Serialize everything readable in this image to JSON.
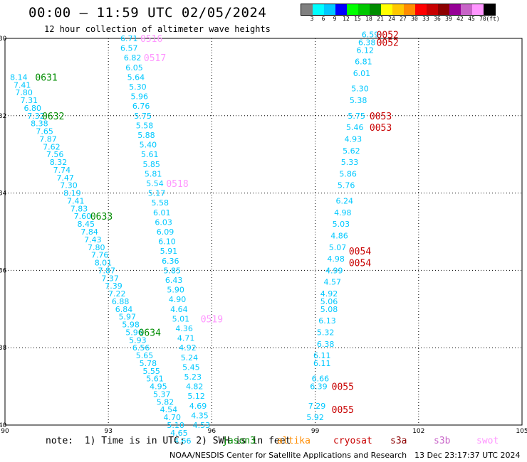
{
  "header": {
    "title": "00:00 — 11:59 UTC 02/05/2024",
    "subtitle": "12 hour collection of altimeter wave heights"
  },
  "colorbar": {
    "colors": [
      "#808080",
      "#00ffff",
      "#00c8ff",
      "#0000ff",
      "#00ff00",
      "#00c800",
      "#008c00",
      "#ffff00",
      "#ffc800",
      "#ff8c00",
      "#ff0000",
      "#c80000",
      "#8c0000",
      "#960096",
      "#c864c8",
      "#ff96ff",
      "#000000"
    ],
    "labels": [
      "3",
      "6",
      "9",
      "12",
      "15",
      "18",
      "21",
      "24",
      "27",
      "30",
      "33",
      "36",
      "39",
      "42",
      "45",
      "70",
      "(ft)"
    ]
  },
  "footer": {
    "note": "note:  1) Time is in UTC;  2) SWH is in feet",
    "legend": [
      {
        "label": "jason3",
        "color": "#008c00"
      },
      {
        "label": "altika",
        "color": "#ff8c00"
      },
      {
        "label": "cryosat",
        "color": "#c80000"
      },
      {
        "label": "s3a",
        "color": "#8c0000"
      },
      {
        "label": "s3b",
        "color": "#c864c8"
      },
      {
        "label": "swot",
        "color": "#ff96ff"
      }
    ],
    "credit": "NOAA/NESDIS Center for Satellite Applications and Research",
    "timestamp": "13 Dec 23:17:37 UTC 2024"
  },
  "chart_data": {
    "type": "scatter",
    "xlim": [
      90,
      105
    ],
    "ylim": [
      -40,
      -30
    ],
    "x_ticks": [
      "90",
      "93",
      "96",
      "99",
      "102",
      "105"
    ],
    "y_ticks": [
      "-30",
      "-32",
      "-34",
      "-36",
      "-38",
      "-40"
    ],
    "grid": true,
    "value_color": "#00c8ff",
    "series": [
      {
        "track": 1,
        "points": [
          [
            90.4,
            -31.0,
            "8.14"
          ],
          [
            90.5,
            -31.2,
            "7.41"
          ],
          [
            90.55,
            -31.4,
            "7.80"
          ],
          [
            90.7,
            -31.6,
            "7.31"
          ],
          [
            90.8,
            -31.8,
            "6.80"
          ],
          [
            90.9,
            -32.0,
            "7.32"
          ],
          [
            91.0,
            -32.2,
            "8.38"
          ],
          [
            91.15,
            -32.4,
            "7.65"
          ],
          [
            91.25,
            -32.6,
            "7.87"
          ],
          [
            91.35,
            -32.8,
            "7.62"
          ],
          [
            91.45,
            -33.0,
            "7.56"
          ],
          [
            91.55,
            -33.2,
            "8.32"
          ],
          [
            91.65,
            -33.4,
            "7.74"
          ],
          [
            91.75,
            -33.6,
            "7.47"
          ],
          [
            91.85,
            -33.8,
            "7.30"
          ],
          [
            91.95,
            -34.0,
            "8.19"
          ],
          [
            92.05,
            -34.2,
            "7.41"
          ],
          [
            92.15,
            -34.4,
            "7.83"
          ],
          [
            92.25,
            -34.6,
            "7.60"
          ],
          [
            92.35,
            -34.8,
            "8.45"
          ],
          [
            92.45,
            -35.0,
            "7.84"
          ],
          [
            92.55,
            -35.2,
            "7.43"
          ],
          [
            92.65,
            -35.4,
            "7.80"
          ],
          [
            92.75,
            -35.6,
            "7.76"
          ],
          [
            92.85,
            -35.8,
            "8.01"
          ],
          [
            92.95,
            -36.0,
            "7.87"
          ],
          [
            93.05,
            -36.2,
            "7.37"
          ],
          [
            93.15,
            -36.4,
            "7.39"
          ],
          [
            93.25,
            -36.6,
            "7.22"
          ],
          [
            93.35,
            -36.8,
            "6.88"
          ],
          [
            93.45,
            -37.0,
            "6.84"
          ],
          [
            93.55,
            -37.2,
            "5.97"
          ],
          [
            93.65,
            -37.4,
            "5.98"
          ],
          [
            93.75,
            -37.6,
            "5.96"
          ],
          [
            93.85,
            -37.8,
            "5.93"
          ],
          [
            93.95,
            -38.0,
            "6.56"
          ],
          [
            94.05,
            -38.2,
            "5.65"
          ],
          [
            94.15,
            -38.4,
            "5.78"
          ],
          [
            94.25,
            -38.6,
            "5.55"
          ],
          [
            94.35,
            -38.8,
            "5.61"
          ],
          [
            94.45,
            -39.0,
            "4.95"
          ],
          [
            94.55,
            -39.2,
            "5.37"
          ],
          [
            94.65,
            -39.4,
            "5.82"
          ],
          [
            94.75,
            -39.6,
            "4.54"
          ],
          [
            94.85,
            -39.8,
            "4.70"
          ],
          [
            94.95,
            -40.0,
            "5.10"
          ],
          [
            95.05,
            -40.2,
            "4.65"
          ],
          [
            95.15,
            -40.4,
            "4.66"
          ]
        ],
        "labels": [
          [
            91.2,
            -31.0,
            "0631",
            "#008c00"
          ],
          [
            91.4,
            -32.0,
            "0632",
            "#008c00"
          ],
          [
            92.8,
            -34.6,
            "0633",
            "#008c00"
          ],
          [
            94.2,
            -37.6,
            "0634",
            "#008c00"
          ]
        ]
      },
      {
        "track": 2,
        "points": [
          [
            93.6,
            -30.0,
            "6.71"
          ],
          [
            93.6,
            -30.25,
            "6.57"
          ],
          [
            93.7,
            -30.5,
            "6.82"
          ],
          [
            93.75,
            -30.75,
            "6.05"
          ],
          [
            93.8,
            -31.0,
            "5.64"
          ],
          [
            93.85,
            -31.25,
            "5.30"
          ],
          [
            93.9,
            -31.5,
            "5.96"
          ],
          [
            93.95,
            -31.75,
            "6.76"
          ],
          [
            94.0,
            -32.0,
            "5.75"
          ],
          [
            94.05,
            -32.25,
            "5.58"
          ],
          [
            94.1,
            -32.5,
            "5.88"
          ],
          [
            94.15,
            -32.75,
            "5.40"
          ],
          [
            94.2,
            -33.0,
            "5.61"
          ],
          [
            94.25,
            -33.25,
            "5.85"
          ],
          [
            94.3,
            -33.5,
            "5.81"
          ],
          [
            94.35,
            -33.75,
            "5.54"
          ],
          [
            94.4,
            -34.0,
            "5.17"
          ],
          [
            94.5,
            -34.25,
            "5.58"
          ],
          [
            94.55,
            -34.5,
            "6.01"
          ],
          [
            94.6,
            -34.75,
            "6.03"
          ],
          [
            94.65,
            -35.0,
            "6.09"
          ],
          [
            94.7,
            -35.25,
            "6.10"
          ],
          [
            94.75,
            -35.5,
            "5.91"
          ],
          [
            94.8,
            -35.75,
            "6.36"
          ],
          [
            94.85,
            -36.0,
            "5.85"
          ],
          [
            94.9,
            -36.25,
            "6.43"
          ],
          [
            94.95,
            -36.5,
            "5.90"
          ],
          [
            95.0,
            -36.75,
            "4.90"
          ],
          [
            95.05,
            -37.0,
            "4.64"
          ],
          [
            95.1,
            -37.25,
            "5.01"
          ],
          [
            95.2,
            -37.5,
            "4.36"
          ],
          [
            95.25,
            -37.75,
            "4.71"
          ],
          [
            95.3,
            -38.0,
            "4.92"
          ],
          [
            95.35,
            -38.25,
            "5.24"
          ],
          [
            95.4,
            -38.5,
            "5.45"
          ],
          [
            95.45,
            -38.75,
            "5.23"
          ],
          [
            95.5,
            -39.0,
            "4.82"
          ],
          [
            95.55,
            -39.25,
            "5.12"
          ],
          [
            95.6,
            -39.5,
            "4.69"
          ],
          [
            95.65,
            -39.75,
            "4.35"
          ],
          [
            95.7,
            -40.0,
            "4.53"
          ]
        ],
        "labels": [
          [
            94.25,
            -30.0,
            "0516",
            "#ff96ff"
          ],
          [
            94.35,
            -30.5,
            "0517",
            "#ff96ff"
          ],
          [
            95.0,
            -33.75,
            "0518",
            "#ff96ff"
          ],
          [
            96.0,
            -37.25,
            "0519",
            "#ff96ff"
          ]
        ]
      },
      {
        "track": 3,
        "points": [
          [
            99.0,
            -39.8,
            "5.92"
          ],
          [
            99.05,
            -39.5,
            "7.29"
          ],
          [
            99.1,
            -39.0,
            "6.39"
          ],
          [
            99.15,
            -38.8,
            "6.66"
          ],
          [
            99.2,
            -38.4,
            "6.11"
          ],
          [
            99.2,
            -38.2,
            "6.11"
          ],
          [
            99.3,
            -37.9,
            "6.38"
          ],
          [
            99.3,
            -37.6,
            "5.32"
          ],
          [
            99.35,
            -37.3,
            "6.13"
          ],
          [
            99.4,
            -37.0,
            "5.08"
          ],
          [
            99.4,
            -36.8,
            "5.06"
          ],
          [
            99.4,
            -36.6,
            "4.92"
          ],
          [
            99.5,
            -36.3,
            "4.57"
          ],
          [
            99.55,
            -36.0,
            "4.99"
          ],
          [
            99.6,
            -35.7,
            "4.98"
          ],
          [
            99.65,
            -35.4,
            "5.07"
          ],
          [
            99.7,
            -35.1,
            "4.86"
          ],
          [
            99.75,
            -34.8,
            "5.03"
          ],
          [
            99.8,
            -34.5,
            "4.98"
          ],
          [
            99.85,
            -34.2,
            "6.24"
          ],
          [
            99.9,
            -33.8,
            "5.76"
          ],
          [
            99.95,
            -33.5,
            "5.86"
          ],
          [
            100.0,
            -33.2,
            "5.33"
          ],
          [
            100.05,
            -32.9,
            "5.62"
          ],
          [
            100.1,
            -32.6,
            "4.93"
          ],
          [
            100.15,
            -32.3,
            "5.46"
          ],
          [
            100.2,
            -32.0,
            "5.75"
          ],
          [
            100.25,
            -31.6,
            "5.38"
          ],
          [
            100.3,
            -31.3,
            "5.30"
          ],
          [
            100.35,
            -30.9,
            "6.01"
          ],
          [
            100.4,
            -30.6,
            "6.81"
          ],
          [
            100.45,
            -30.3,
            "6.12"
          ],
          [
            100.5,
            -30.1,
            "6.38"
          ],
          [
            100.6,
            -29.9,
            "6.59"
          ]
        ],
        "labels": [
          [
            101.1,
            -29.9,
            "0052",
            "#c80000"
          ],
          [
            101.1,
            -30.1,
            "0052",
            "#c80000"
          ],
          [
            100.9,
            -32.0,
            "0053",
            "#c80000"
          ],
          [
            100.9,
            -32.3,
            "0053",
            "#c80000"
          ],
          [
            100.3,
            -35.5,
            "0054",
            "#c80000"
          ],
          [
            100.3,
            -35.8,
            "0054",
            "#c80000"
          ],
          [
            99.8,
            -39.0,
            "0055",
            "#c80000"
          ],
          [
            99.8,
            -39.6,
            "0055",
            "#c80000"
          ]
        ]
      }
    ]
  }
}
